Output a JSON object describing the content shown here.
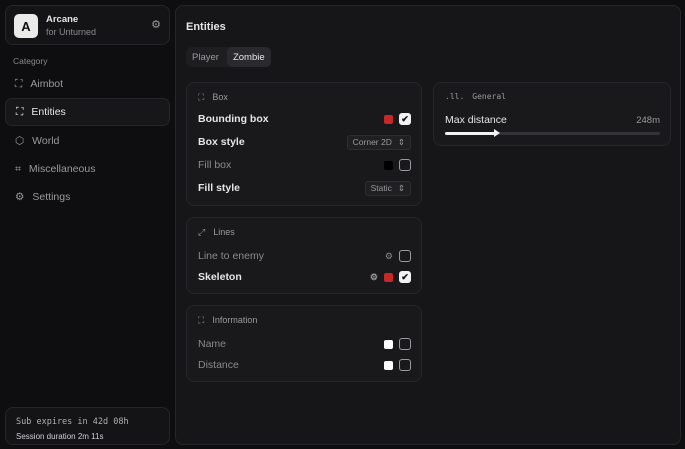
{
  "app": {
    "logo_letter": "A",
    "name": "Arcane",
    "subtitle": "for Unturned"
  },
  "sidebar": {
    "category_label": "Category",
    "items": [
      {
        "label": "Aimbot",
        "icon": "crosshair-icon"
      },
      {
        "label": "Entities",
        "icon": "scan-face-icon",
        "active": true
      },
      {
        "label": "World",
        "icon": "globe-icon"
      },
      {
        "label": "Miscellaneous",
        "icon": "grid-icon"
      },
      {
        "label": "Settings",
        "icon": "gear-icon"
      }
    ]
  },
  "footer": {
    "sub": "Sub expires in 42d 08h",
    "session": "Session duration 2m 11s"
  },
  "main": {
    "title": "Entities",
    "tabs": [
      {
        "label": "Player"
      },
      {
        "label": "Zombie",
        "active": true
      }
    ],
    "box": {
      "title": "Box",
      "bounding_label": "Bounding box",
      "bounding_color": "#c62828",
      "bounding_checked": true,
      "style_label": "Box style",
      "style_value": "Corner 2D",
      "fill_label": "Fill box",
      "fill_color": "#000000",
      "fill_checked": false,
      "fill_style_label": "Fill style",
      "fill_style_value": "Static"
    },
    "lines": {
      "title": "Lines",
      "line_label": "Line to enemy",
      "line_checked": false,
      "skeleton_label": "Skeleton",
      "skeleton_color": "#c62828",
      "skeleton_checked": true
    },
    "info": {
      "title": "Information",
      "name_label": "Name",
      "name_color": "#ffffff",
      "name_checked": false,
      "distance_label": "Distance",
      "distance_color": "#ffffff",
      "distance_checked": false
    },
    "general": {
      "title": "General",
      "max_distance_label": "Max distance",
      "max_distance_value": "248m",
      "slider_fraction": 0.24
    }
  }
}
